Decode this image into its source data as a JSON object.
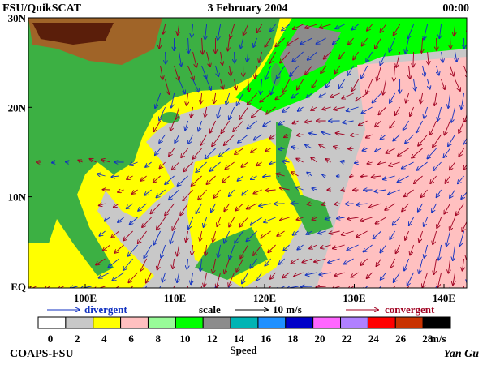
{
  "header": {
    "left": "FSU/QuikSCAT",
    "date": "3 February 2004",
    "time": "00:00"
  },
  "map": {
    "lat_labels": [
      "30N",
      "20N",
      "10N",
      "EQ"
    ],
    "lon_labels": [
      "100E",
      "110E",
      "120E",
      "130E",
      "140E"
    ]
  },
  "legend": {
    "divergent": "divergent",
    "scale": "scale",
    "scale_value": "10 m/s",
    "convergent": "convergent"
  },
  "colorbar": {
    "colors": [
      "#ffffff",
      "#c8c8c8",
      "#ffff00",
      "#ffc0c0",
      "#98fb98",
      "#00ff00",
      "#8c8c8c",
      "#00b4b4",
      "#1e90ff",
      "#0000c8",
      "#ff66ff",
      "#b080ff",
      "#ff0000",
      "#c83200",
      "#000000"
    ],
    "labels": [
      0,
      2,
      4,
      6,
      8,
      10,
      12,
      14,
      16,
      18,
      20,
      22,
      24,
      26,
      28
    ],
    "unit": "m/s",
    "title": "Speed"
  },
  "footer": {
    "left": "COAPS-FSU",
    "right": "Yan Gu"
  }
}
